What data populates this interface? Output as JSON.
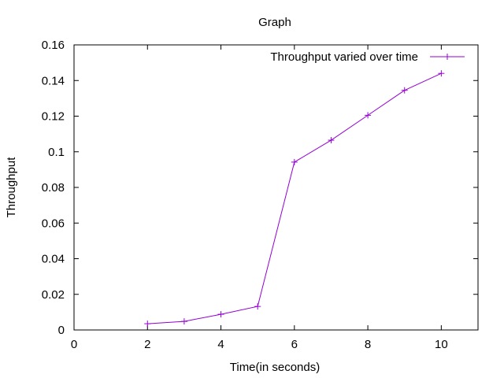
{
  "chart_data": {
    "type": "line",
    "title": "Graph",
    "xlabel": "Time(in seconds)",
    "ylabel": "Throughput",
    "xlim": [
      0,
      11
    ],
    "ylim": [
      0,
      0.16
    ],
    "xticks": [
      0,
      2,
      4,
      6,
      8,
      10
    ],
    "xtick_labels": [
      "0",
      "2",
      "4",
      "6",
      "8",
      "10"
    ],
    "yticks": [
      0,
      0.02,
      0.04,
      0.06,
      0.08,
      0.1,
      0.12,
      0.14,
      0.16
    ],
    "ytick_labels": [
      "0",
      "0.02",
      "0.04",
      "0.06",
      "0.08",
      "0.1",
      "0.12",
      "0.14",
      "0.16"
    ],
    "grid": false,
    "legend_position": "top-right",
    "series": [
      {
        "name": "Throughput varied over time",
        "color": "#9400d3",
        "marker": "plus",
        "x": [
          2,
          3,
          4,
          5,
          6,
          7,
          8,
          9,
          10
        ],
        "y": [
          0.0035,
          0.0048,
          0.0088,
          0.0132,
          0.0942,
          0.1065,
          0.1205,
          0.1345,
          0.144
        ]
      }
    ]
  }
}
